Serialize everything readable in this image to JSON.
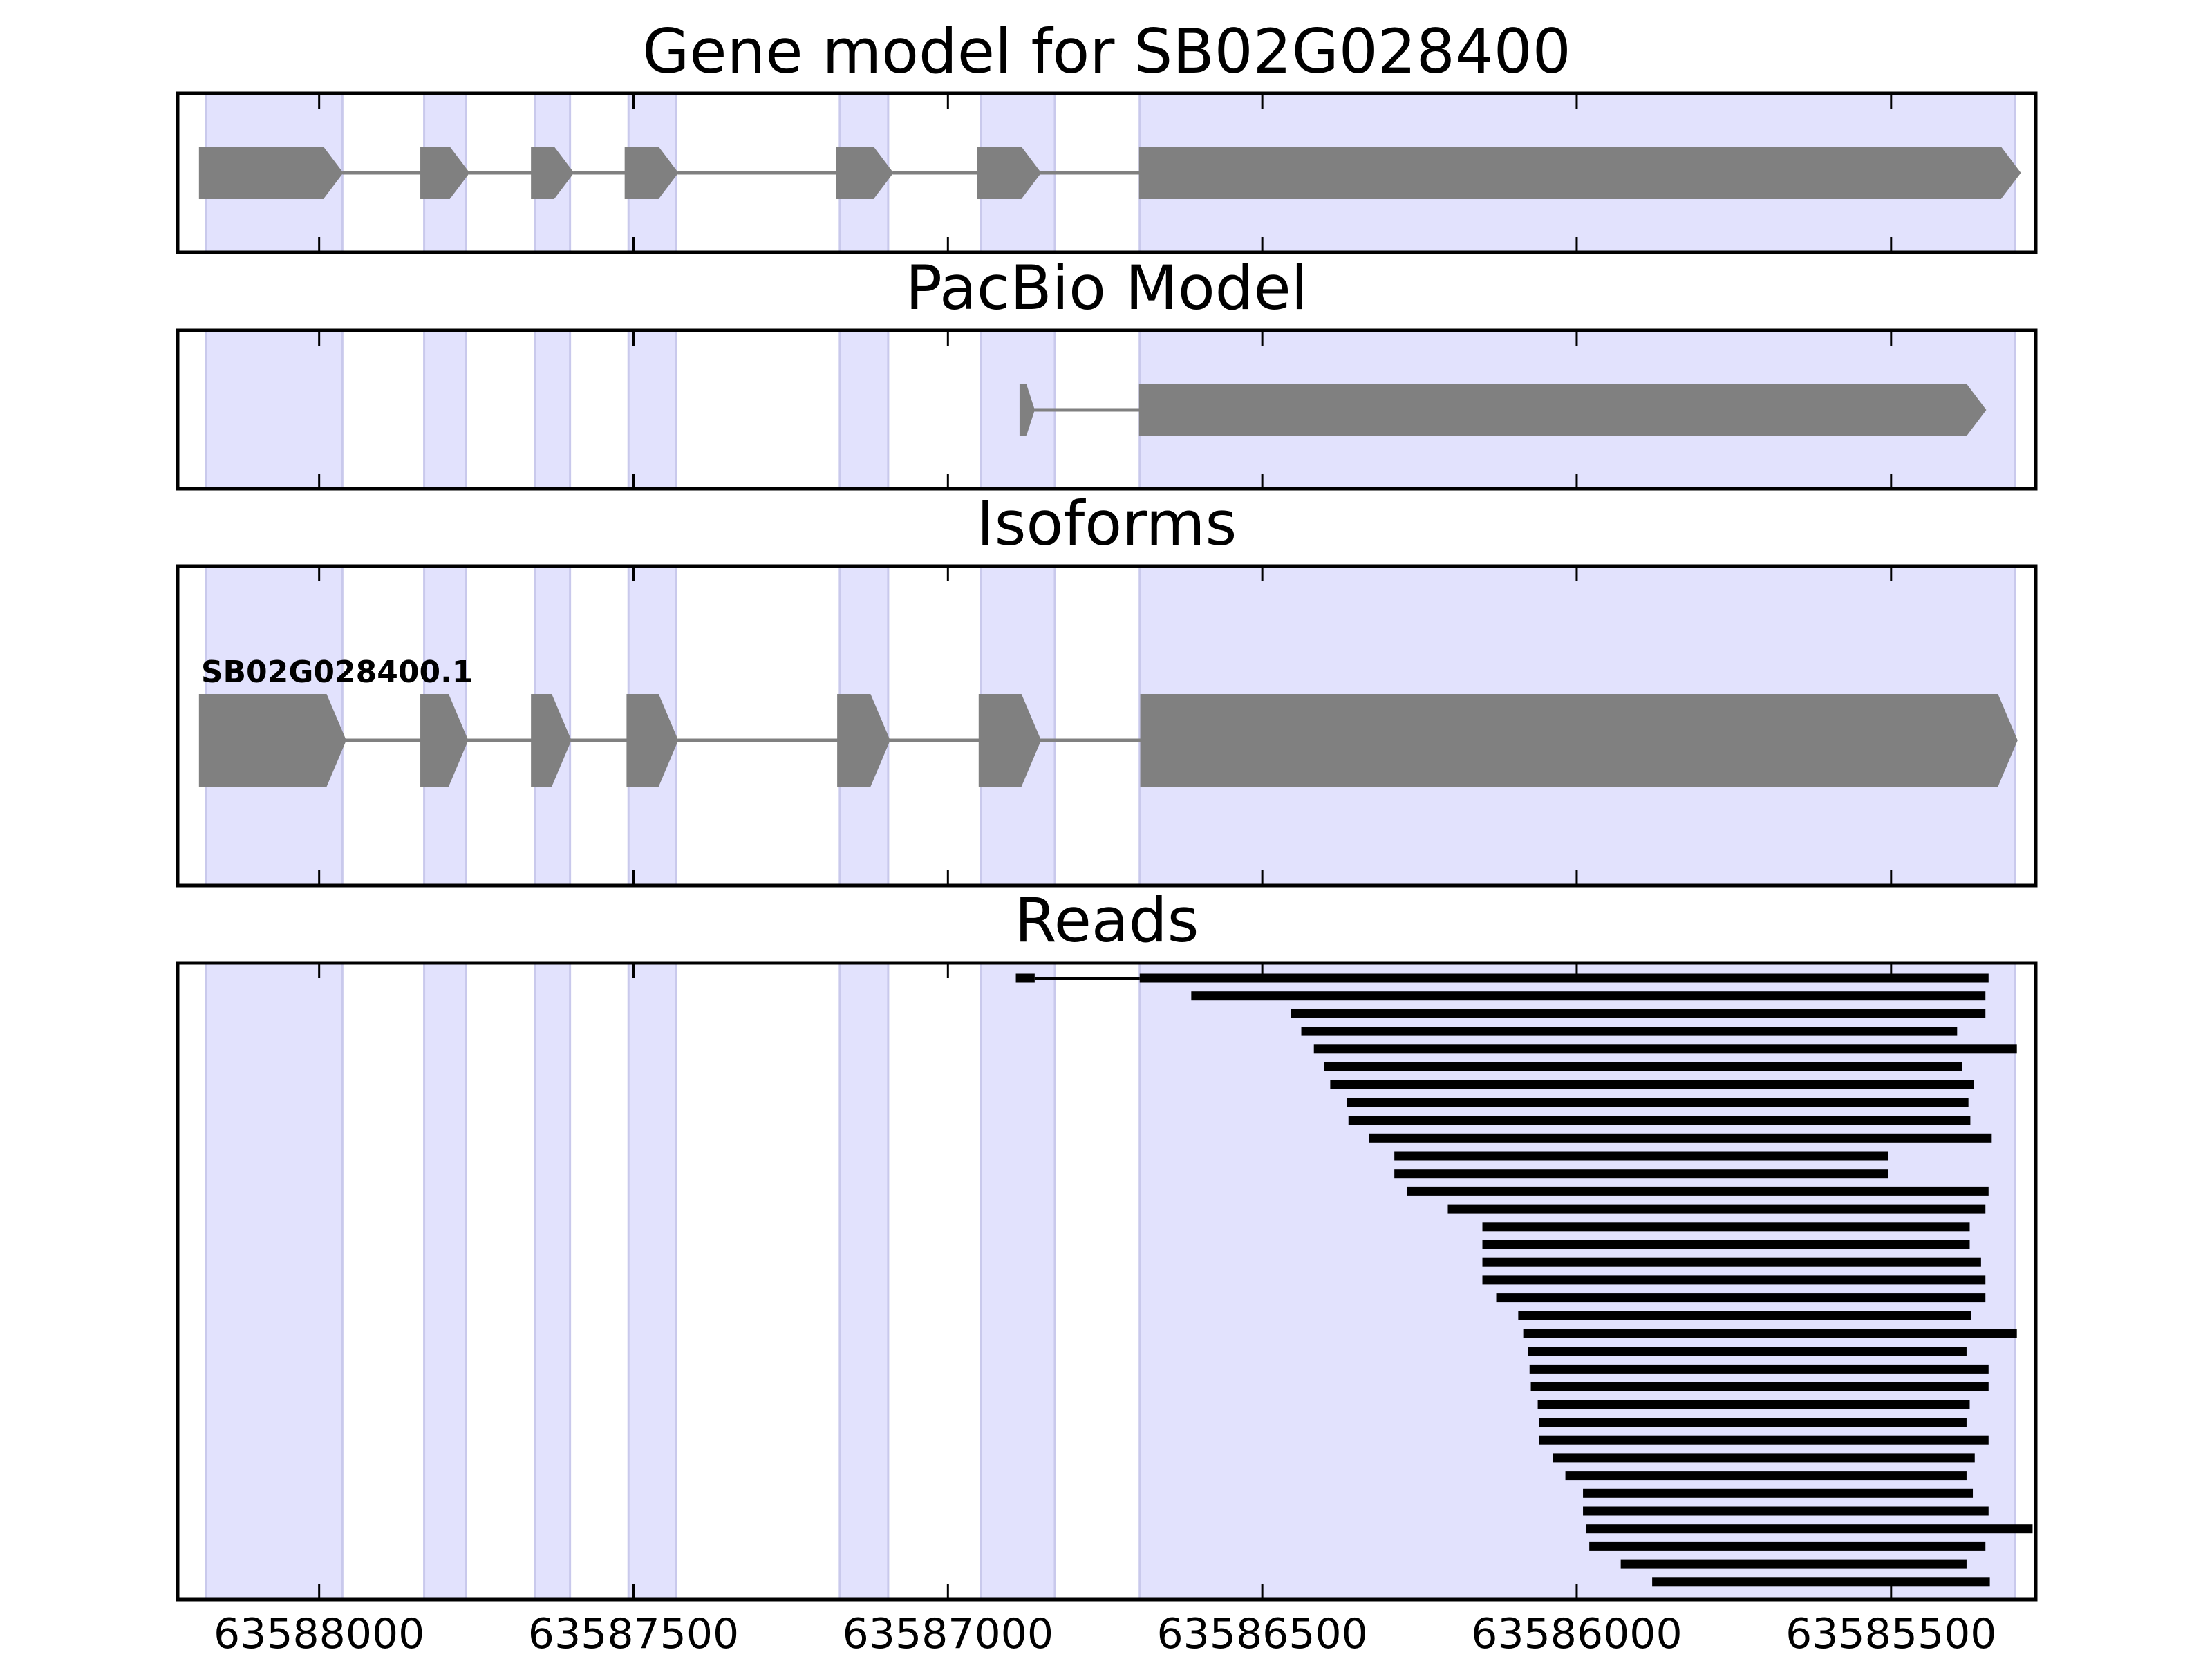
{
  "chart_data": {
    "type": "gene-structure",
    "x_axis": {
      "range": [
        63588225,
        63585270
      ],
      "reversed": true,
      "ticks": [
        63588000,
        63587500,
        63587000,
        63586500,
        63586000,
        63585500
      ],
      "tick_labels": [
        "63588000",
        "63587500",
        "63587000",
        "63586500",
        "63586000",
        "63585500"
      ]
    },
    "colors": {
      "exon_fill": "#808080",
      "intron_line": "#808080",
      "exon_band": "#e2e2fd",
      "read": "#000000",
      "frame": "#000000"
    },
    "exon_bands": [
      [
        63588180,
        63587963
      ],
      [
        63587833,
        63587767
      ],
      [
        63587657,
        63587601
      ],
      [
        63587508,
        63587432
      ],
      [
        63587172,
        63587095
      ],
      [
        63586948,
        63586830
      ],
      [
        63586695,
        63585303
      ]
    ],
    "panels": [
      {
        "title": "Gene model for SB02G028400",
        "models": [
          {
            "label": "",
            "exons": [
              [
                63588190,
                63587963
              ],
              [
                63587838,
                63587762
              ],
              [
                63587662,
                63587596
              ],
              [
                63587513,
                63587430
              ],
              [
                63587177,
                63587088
              ],
              [
                63586953,
                63586853
              ],
              [
                63586695,
                63585295
              ]
            ]
          }
        ]
      },
      {
        "title": "PacBio Model",
        "models": [
          {
            "label": "",
            "exons": [
              [
                63586885,
                63586863
              ],
              [
                63586695,
                63585350
              ]
            ]
          }
        ]
      },
      {
        "title": "Isoforms",
        "models": [
          {
            "label": "SB02G028400.1",
            "exons": [
              [
                63588190,
                63587958
              ],
              [
                63587838,
                63587764
              ],
              [
                63587662,
                63587600
              ],
              [
                63587510,
                63587430
              ],
              [
                63587175,
                63587093
              ],
              [
                63586950,
                63586853
              ],
              [
                63586693,
                63585300
              ]
            ]
          }
        ]
      },
      {
        "title": "Reads",
        "reads": [
          [
            63585345,
            63586695,
            [
              63586892,
              63586862
            ]
          ],
          [
            63585350,
            63586613
          ],
          [
            63585350,
            63586455
          ],
          [
            63585395,
            63586438
          ],
          [
            63585300,
            63586418
          ],
          [
            63585387,
            63586402
          ],
          [
            63585368,
            63586392
          ],
          [
            63585377,
            63586365
          ],
          [
            63585374,
            63586363
          ],
          [
            63585340,
            63586330
          ],
          [
            63585505,
            63586290
          ],
          [
            63585505,
            63586290
          ],
          [
            63585345,
            63586270
          ],
          [
            63585350,
            63586205
          ],
          [
            63585375,
            63586150
          ],
          [
            63585375,
            63586150
          ],
          [
            63585357,
            63586150
          ],
          [
            63585350,
            63586150
          ],
          [
            63585350,
            63586128
          ],
          [
            63585373,
            63586093
          ],
          [
            63585300,
            63586085
          ],
          [
            63585380,
            63586078
          ],
          [
            63585345,
            63586075
          ],
          [
            63585345,
            63586073
          ],
          [
            63585375,
            63586062
          ],
          [
            63585380,
            63586060
          ],
          [
            63585345,
            63586060
          ],
          [
            63585367,
            63586038
          ],
          [
            63585380,
            63586018
          ],
          [
            63585370,
            63585990
          ],
          [
            63585345,
            63585990
          ],
          [
            63585275,
            63585985
          ],
          [
            63585350,
            63585980
          ],
          [
            63585380,
            63585930
          ],
          [
            63585343,
            63585880
          ]
        ]
      }
    ]
  }
}
